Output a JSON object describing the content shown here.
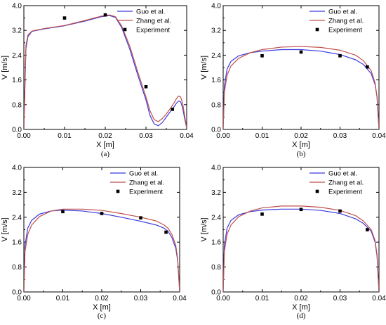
{
  "chart_data": [
    {
      "type": "line",
      "panel_label": "(a)",
      "xlabel": "X [m]",
      "ylabel": "V [m/s]",
      "xlim": [
        0,
        0.04
      ],
      "ylim": [
        0,
        4.0
      ],
      "xticks": [
        "0.00",
        "0.01",
        "0.02",
        "0.03",
        "0.04"
      ],
      "yticks": [
        "0.0",
        "0.8",
        "1.6",
        "2.4",
        "3.2",
        "4.0"
      ],
      "legend_position": "top-right",
      "series": [
        {
          "name": "Guo et al.",
          "kind": "line",
          "color": "#3b3bdc",
          "x": [
            0.0,
            0.0005,
            0.001,
            0.002,
            0.005,
            0.01,
            0.015,
            0.019,
            0.021,
            0.0225,
            0.024,
            0.026,
            0.028,
            0.03,
            0.031,
            0.032,
            0.033,
            0.034,
            0.035,
            0.036,
            0.037,
            0.0375,
            0.038,
            0.0385,
            0.039,
            0.0395,
            0.04
          ],
          "y": [
            0.0,
            2.6,
            3.0,
            3.17,
            3.25,
            3.35,
            3.5,
            3.64,
            3.68,
            3.62,
            3.3,
            2.6,
            1.75,
            0.95,
            0.45,
            0.18,
            0.12,
            0.22,
            0.4,
            0.58,
            0.75,
            0.85,
            0.92,
            0.9,
            0.7,
            0.35,
            0.05
          ]
        },
        {
          "name": "Zhang et al.",
          "kind": "line",
          "color": "#c0504d",
          "x": [
            0.0,
            0.0005,
            0.001,
            0.002,
            0.005,
            0.01,
            0.015,
            0.019,
            0.021,
            0.0225,
            0.024,
            0.026,
            0.028,
            0.03,
            0.031,
            0.032,
            0.033,
            0.034,
            0.035,
            0.036,
            0.037,
            0.0375,
            0.038,
            0.0385,
            0.039,
            0.0395,
            0.04
          ],
          "y": [
            0.0,
            2.7,
            3.05,
            3.18,
            3.26,
            3.36,
            3.52,
            3.66,
            3.7,
            3.64,
            3.35,
            2.7,
            1.85,
            1.05,
            0.6,
            0.32,
            0.25,
            0.35,
            0.5,
            0.68,
            0.88,
            1.0,
            1.08,
            1.05,
            0.85,
            0.45,
            0.05
          ]
        },
        {
          "name": "Experiment",
          "kind": "scatter",
          "color": "#000000",
          "x": [
            0.01,
            0.02,
            0.03,
            0.0365
          ],
          "y": [
            3.6,
            3.7,
            1.38,
            0.65
          ]
        }
      ]
    },
    {
      "type": "line",
      "panel_label": "(b)",
      "xlabel": "X [m]",
      "ylabel": "V [m/s]",
      "xlim": [
        0,
        0.04
      ],
      "ylim": [
        0,
        4.0
      ],
      "xticks": [
        "0.00",
        "0.01",
        "0.02",
        "0.03",
        "0.04"
      ],
      "yticks": [
        "0.0",
        "0.8",
        "1.6",
        "2.4",
        "3.2",
        "4.0"
      ],
      "legend_position": "top-right",
      "series": [
        {
          "name": "Guo et al.",
          "kind": "line",
          "color": "#3b3bdc",
          "x": [
            0.0,
            0.0003,
            0.001,
            0.002,
            0.004,
            0.007,
            0.01,
            0.015,
            0.02,
            0.025,
            0.03,
            0.034,
            0.036,
            0.038,
            0.039,
            0.0395,
            0.04
          ],
          "y": [
            0.0,
            1.4,
            1.95,
            2.2,
            2.38,
            2.48,
            2.53,
            2.58,
            2.58,
            2.53,
            2.42,
            2.25,
            2.1,
            1.8,
            1.45,
            1.05,
            0.0
          ]
        },
        {
          "name": "Zhang et al.",
          "kind": "line",
          "color": "#c0504d",
          "x": [
            0.0,
            0.0003,
            0.001,
            0.002,
            0.004,
            0.007,
            0.01,
            0.015,
            0.02,
            0.025,
            0.03,
            0.034,
            0.036,
            0.038,
            0.039,
            0.0395,
            0.04
          ],
          "y": [
            0.0,
            1.2,
            1.75,
            2.05,
            2.3,
            2.48,
            2.58,
            2.66,
            2.68,
            2.65,
            2.56,
            2.4,
            2.22,
            1.9,
            1.5,
            1.05,
            0.0
          ]
        },
        {
          "name": "Experiment",
          "kind": "scatter",
          "color": "#000000",
          "x": [
            0.01,
            0.02,
            0.03,
            0.037
          ],
          "y": [
            2.38,
            2.5,
            2.38,
            2.02
          ]
        }
      ]
    },
    {
      "type": "line",
      "panel_label": "(c)",
      "xlabel": "X [m]",
      "ylabel": "V [m/s]",
      "xlim": [
        0,
        0.04
      ],
      "ylim": [
        0,
        4.0
      ],
      "xticks": [
        "0.00",
        "0.01",
        "0.02",
        "0.03",
        "0.04"
      ],
      "yticks": [
        "0.0",
        "0.8",
        "1.6",
        "2.4",
        "3.2",
        "4.0"
      ],
      "legend_position": "top-right",
      "series": [
        {
          "name": "Guo et al.",
          "kind": "line",
          "color": "#3b3bdc",
          "x": [
            0.0,
            0.0003,
            0.001,
            0.002,
            0.004,
            0.007,
            0.01,
            0.015,
            0.02,
            0.025,
            0.03,
            0.034,
            0.036,
            0.037,
            0.038,
            0.039,
            0.0395,
            0.04
          ],
          "y": [
            0.0,
            1.5,
            2.05,
            2.3,
            2.5,
            2.6,
            2.63,
            2.6,
            2.52,
            2.4,
            2.27,
            2.15,
            2.05,
            1.95,
            1.75,
            1.4,
            1.0,
            0.0
          ]
        },
        {
          "name": "Zhang et al.",
          "kind": "line",
          "color": "#c0504d",
          "x": [
            0.0,
            0.0003,
            0.001,
            0.002,
            0.004,
            0.007,
            0.01,
            0.015,
            0.02,
            0.025,
            0.03,
            0.034,
            0.036,
            0.037,
            0.038,
            0.039,
            0.0395,
            0.04
          ],
          "y": [
            0.0,
            1.3,
            1.85,
            2.15,
            2.42,
            2.6,
            2.66,
            2.66,
            2.62,
            2.52,
            2.4,
            2.28,
            2.15,
            2.05,
            1.85,
            1.5,
            1.05,
            0.0
          ]
        },
        {
          "name": "Experiment",
          "kind": "scatter",
          "color": "#000000",
          "x": [
            0.01,
            0.02,
            0.03,
            0.0365
          ],
          "y": [
            2.58,
            2.52,
            2.38,
            1.92
          ]
        }
      ]
    },
    {
      "type": "line",
      "panel_label": "(d)",
      "xlabel": "X [m]",
      "ylabel": "V [m/s]",
      "xlim": [
        0,
        0.04
      ],
      "ylim": [
        0,
        4.0
      ],
      "xticks": [
        "0.00",
        "0.01",
        "0.02",
        "0.03",
        "0.04"
      ],
      "yticks": [
        "0.0",
        "0.8",
        "1.6",
        "2.4",
        "3.2",
        "4.0"
      ],
      "legend_position": "top-right",
      "series": [
        {
          "name": "Guo et al.",
          "kind": "line",
          "color": "#3b3bdc",
          "x": [
            0.0,
            0.0003,
            0.001,
            0.002,
            0.004,
            0.007,
            0.01,
            0.015,
            0.02,
            0.025,
            0.03,
            0.034,
            0.036,
            0.038,
            0.039,
            0.0395,
            0.04
          ],
          "y": [
            0.0,
            1.5,
            2.05,
            2.3,
            2.48,
            2.58,
            2.63,
            2.66,
            2.66,
            2.62,
            2.52,
            2.35,
            2.2,
            1.95,
            1.6,
            1.15,
            0.0
          ]
        },
        {
          "name": "Zhang et al.",
          "kind": "line",
          "color": "#c0504d",
          "x": [
            0.0,
            0.0003,
            0.001,
            0.002,
            0.004,
            0.007,
            0.01,
            0.015,
            0.02,
            0.025,
            0.03,
            0.034,
            0.036,
            0.038,
            0.039,
            0.0395,
            0.04
          ],
          "y": [
            0.0,
            1.3,
            1.85,
            2.15,
            2.42,
            2.6,
            2.7,
            2.76,
            2.76,
            2.72,
            2.62,
            2.45,
            2.28,
            2.0,
            1.65,
            1.2,
            0.0
          ]
        },
        {
          "name": "Experiment",
          "kind": "scatter",
          "color": "#000000",
          "x": [
            0.01,
            0.02,
            0.03,
            0.037
          ],
          "y": [
            2.5,
            2.65,
            2.6,
            2.0
          ]
        }
      ]
    }
  ]
}
